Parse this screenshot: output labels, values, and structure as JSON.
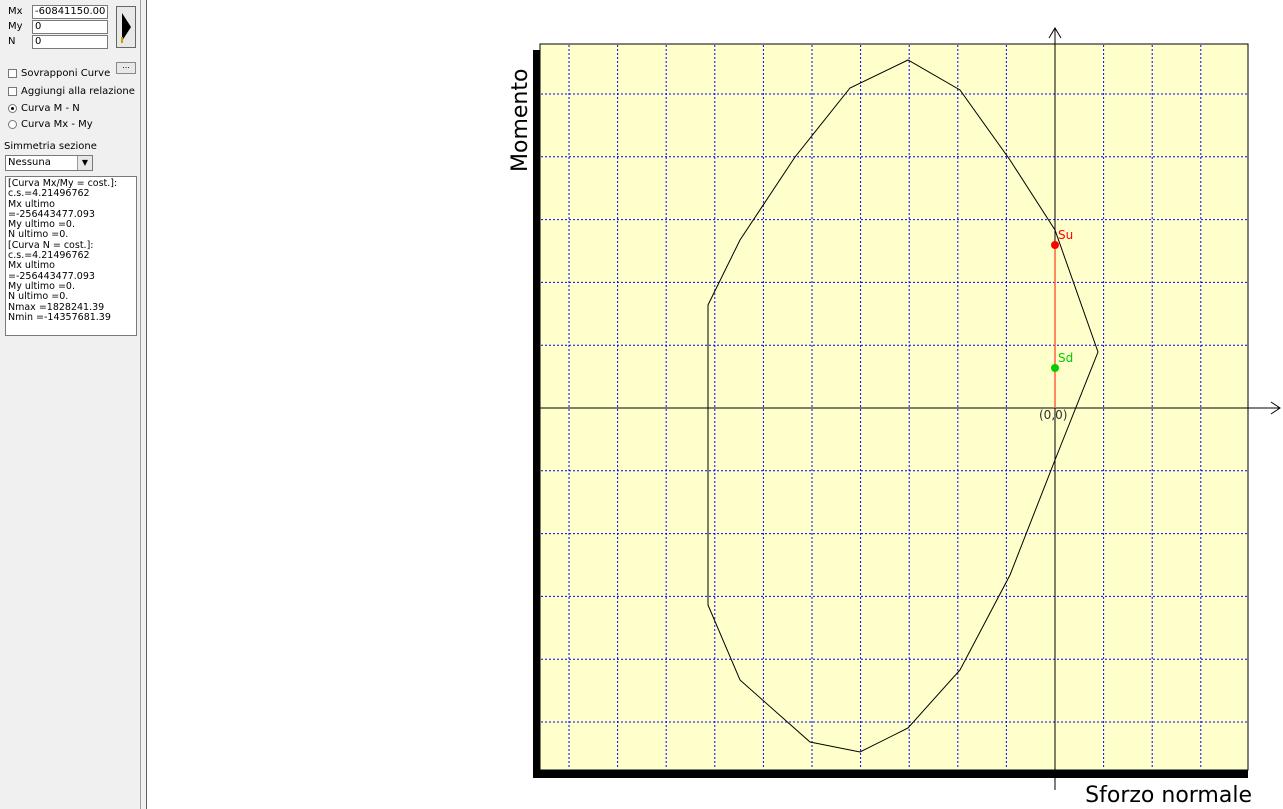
{
  "panel": {
    "fields": [
      {
        "label": "Mx",
        "value": "-60841150.00"
      },
      {
        "label": "My",
        "value": "0"
      },
      {
        "label": "N",
        "value": "0"
      }
    ],
    "more_button": "...",
    "checkboxes": [
      "Sovrapponi Curve",
      "Aggiungi alla relazione"
    ],
    "radios": [
      "Curva M - N",
      "Curva Mx - My"
    ],
    "symmetry_label": "Simmetria sezione",
    "symmetry_value": "Nessuna",
    "output": [
      "[Curva Mx/My = cost.]:",
      "c.s.=4.21496762",
      "Mx ultimo =-256443477.093",
      "My ultimo =0.",
      "N  ultimo =0.",
      "[Curva N = cost.]:",
      "c.s.=4.21496762",
      "Mx ultimo =-256443477.093",
      "My ultimo =0.",
      "N  ultimo =0.",
      "Nmax =1828241.39",
      "Nmin =-14357681.39"
    ]
  },
  "plot": {
    "y_label": "Momento",
    "x_label": "Sforzo normale",
    "origin": "(0,0)",
    "point_u": "Su",
    "point_d": "Sd"
  }
}
